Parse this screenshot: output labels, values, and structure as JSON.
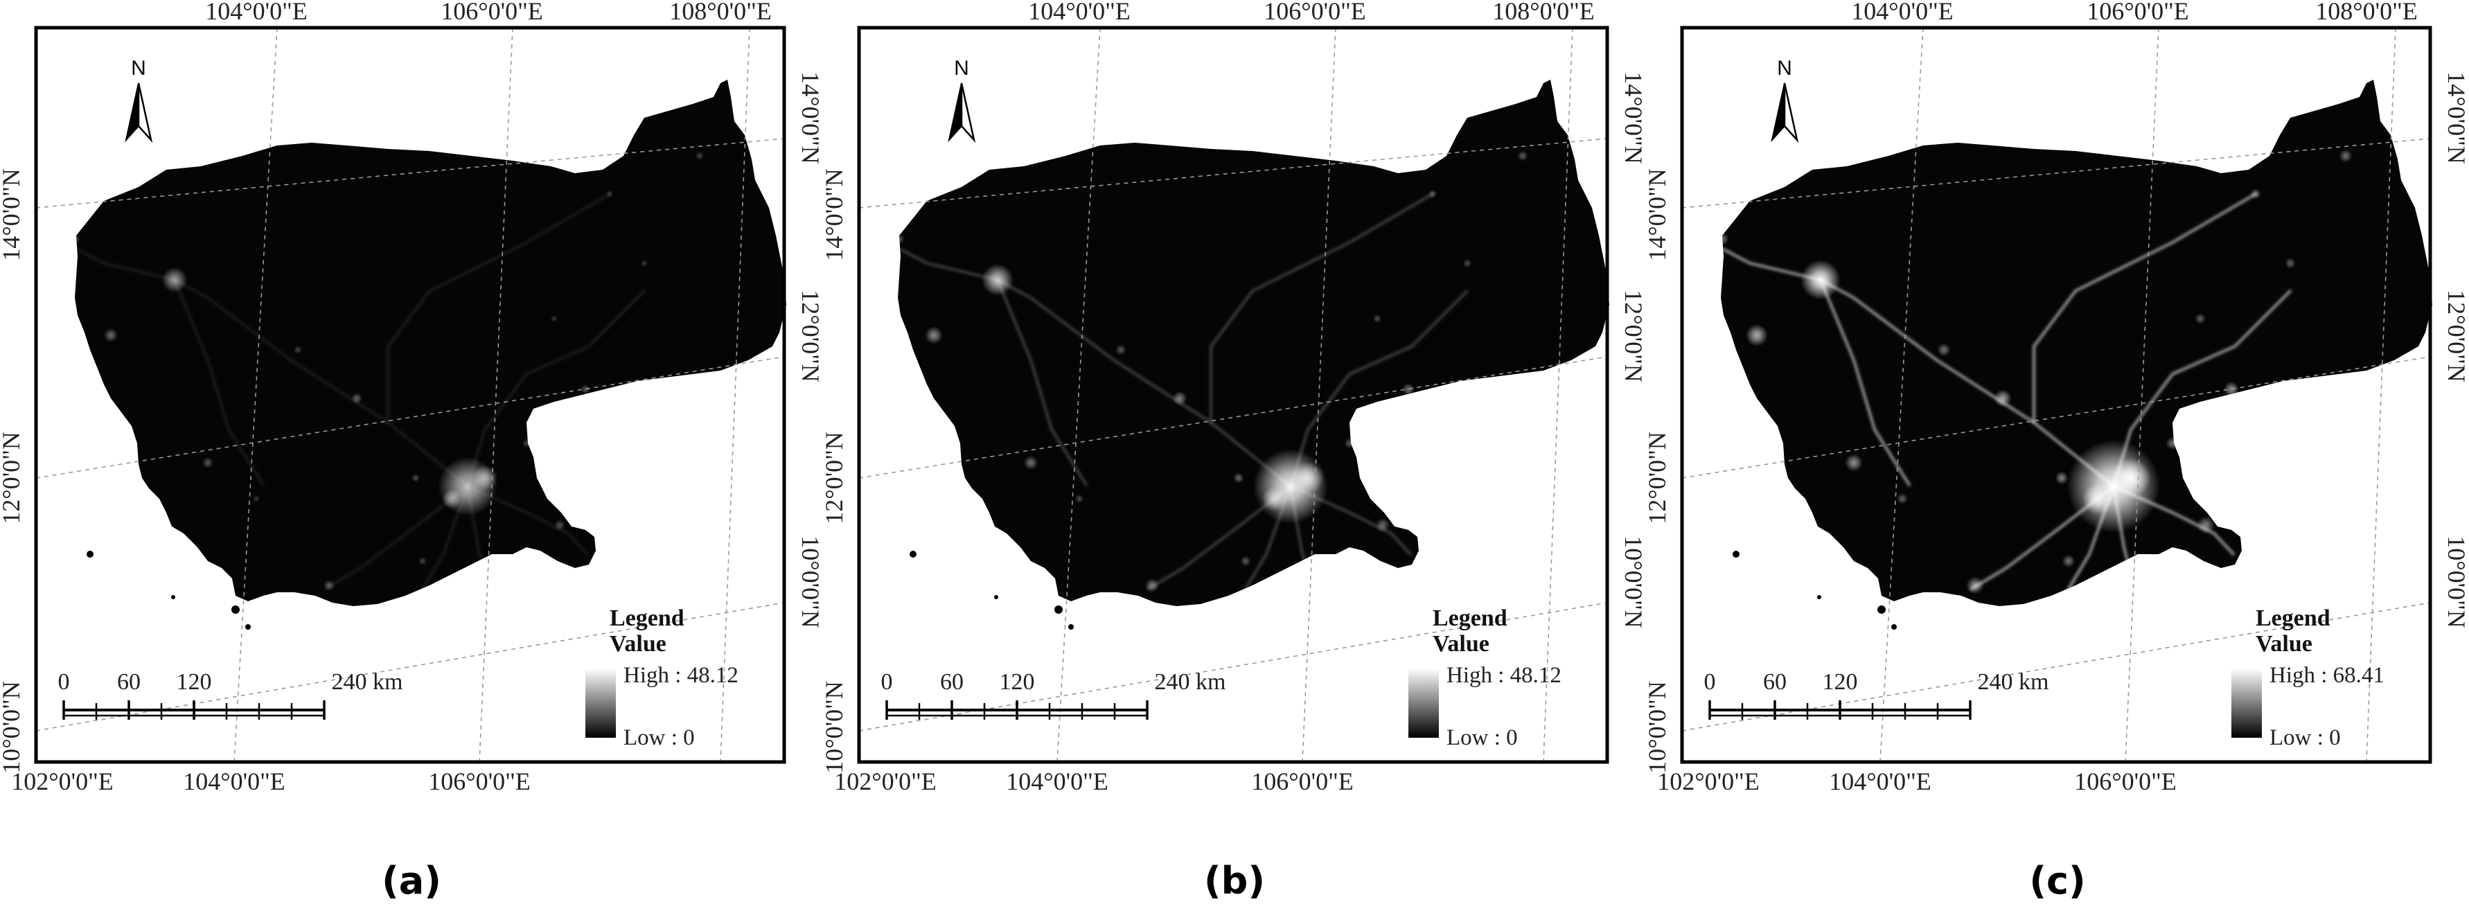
{
  "panels": [
    {
      "caption": "(a)",
      "top_lon_labels": [
        "104°0'0\"E",
        "106°0'0\"E",
        "108°0'0\"E"
      ],
      "bottom_lon_labels": [
        "102°0'0\"E",
        "104°0'0\"E",
        "106°0'0\"E"
      ],
      "left_lat_labels": [
        "14°0'0\"N",
        "12°0'0\"N",
        "10°0'0\"N"
      ],
      "right_lat_labels": [
        "14°0'0\"N",
        "12°0'0\"N",
        "10°0'0\"N"
      ],
      "legend": {
        "title": "Legend",
        "subtitle": "Value",
        "high": "High : 48.12",
        "low": "Low : 0"
      },
      "scale": {
        "ticks": [
          "0",
          "60",
          "120",
          "240 km"
        ]
      },
      "north": "N",
      "brightness": 0.35
    },
    {
      "caption": "(b)",
      "top_lon_labels": [
        "104°0'0\"E",
        "106°0'0\"E",
        "108°0'0\"E"
      ],
      "bottom_lon_labels": [
        "102°0'0\"E",
        "104°0'0\"E",
        "106°0'0\"E"
      ],
      "left_lat_labels": [
        "14°0'0\"N",
        "12°0'0\"N",
        "10°0'0\"N"
      ],
      "right_lat_labels": [
        "14°0'0\"N",
        "12°0'0\"N",
        "10°0'0\"N"
      ],
      "legend": {
        "title": "Legend",
        "subtitle": "Value",
        "high": "High : 48.12",
        "low": "Low : 0"
      },
      "scale": {
        "ticks": [
          "0",
          "60",
          "120",
          "240 km"
        ]
      },
      "north": "N",
      "brightness": 0.65
    },
    {
      "caption": "(c)",
      "top_lon_labels": [
        "104°0'0\"E",
        "106°0'0\"E",
        "108°0'0\"E"
      ],
      "bottom_lon_labels": [
        "102°0'0\"E",
        "104°0'0\"E",
        "106°0'0\"E"
      ],
      "left_lat_labels": [
        "14°0'0\"N",
        "12°0'0\"N",
        "10°0'0\"N"
      ],
      "right_lat_labels": [
        "14°0'0\"N",
        "12°0'0\"N",
        "10°0'0\"N"
      ],
      "legend": {
        "title": "Legend",
        "subtitle": "Value",
        "high": "High : 68.41",
        "low": "Low : 0"
      },
      "scale": {
        "ticks": [
          "0",
          "60",
          "120",
          "240 km"
        ]
      },
      "north": "N",
      "brightness": 1.0
    }
  ],
  "colors": {
    "background": "#ffffff",
    "land": "#050505",
    "light": "#ffffff",
    "grid": "#9a9a9a",
    "frame": "#000000"
  }
}
